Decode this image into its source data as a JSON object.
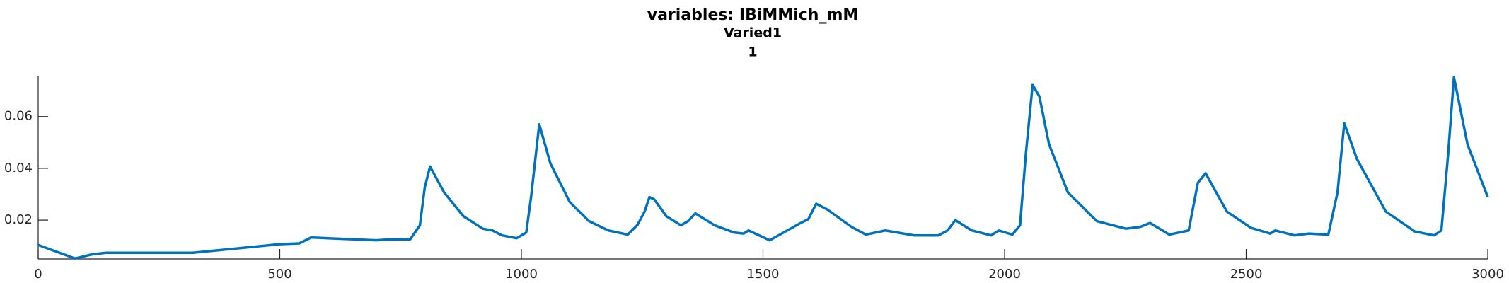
{
  "chart_data": {
    "type": "line",
    "title": "variables: IBiMMich_mM",
    "subtitle_lines": [
      "Varied1",
      "1"
    ],
    "x": [
      0,
      76,
      110,
      140,
      320,
      500,
      540,
      565,
      600,
      700,
      730,
      770,
      790,
      800,
      811,
      840,
      880,
      920,
      940,
      960,
      990,
      1010,
      1020,
      1030,
      1037,
      1060,
      1100,
      1140,
      1180,
      1220,
      1240,
      1255,
      1265,
      1275,
      1300,
      1330,
      1345,
      1360,
      1400,
      1440,
      1460,
      1470,
      1514,
      1574,
      1594,
      1610,
      1633,
      1683,
      1713,
      1753,
      1813,
      1863,
      1882,
      1898,
      1932,
      1972,
      1988,
      2016,
      2032,
      2044,
      2058,
      2072,
      2092,
      2131,
      2191,
      2251,
      2281,
      2301,
      2341,
      2381,
      2400,
      2416,
      2460,
      2510,
      2550,
      2560,
      2600,
      2630,
      2670,
      2689,
      2703,
      2729,
      2789,
      2849,
      2889,
      2904,
      2918,
      2930,
      2958,
      3000
    ],
    "series": [
      {
        "color": "#0072bd",
        "values": [
          0.0104,
          0.0052,
          0.0067,
          0.0074,
          0.0074,
          0.0107,
          0.011,
          0.0133,
          0.013,
          0.0122,
          0.0126,
          0.0126,
          0.018,
          0.0326,
          0.0407,
          0.0307,
          0.0215,
          0.0167,
          0.016,
          0.0141,
          0.013,
          0.0152,
          0.0289,
          0.0455,
          0.057,
          0.0419,
          0.027,
          0.0196,
          0.016,
          0.0144,
          0.0181,
          0.0233,
          0.0289,
          0.028,
          0.0215,
          0.018,
          0.0196,
          0.0226,
          0.018,
          0.0152,
          0.0148,
          0.016,
          0.0122,
          0.0185,
          0.0204,
          0.0263,
          0.0241,
          0.0174,
          0.0144,
          0.016,
          0.0141,
          0.0141,
          0.016,
          0.02,
          0.016,
          0.0141,
          0.016,
          0.0144,
          0.018,
          0.0455,
          0.0722,
          0.0678,
          0.0493,
          0.0307,
          0.0196,
          0.0167,
          0.0174,
          0.0189,
          0.0144,
          0.016,
          0.0344,
          0.0381,
          0.0233,
          0.017,
          0.0148,
          0.016,
          0.0141,
          0.0148,
          0.0144,
          0.0307,
          0.0574,
          0.0437,
          0.0233,
          0.0156,
          0.0141,
          0.016,
          0.0455,
          0.0752,
          0.0493,
          0.0289
        ]
      }
    ],
    "xlim": [
      0,
      3000
    ],
    "xticks": [
      0,
      500,
      1000,
      1500,
      2000,
      2500,
      3000
    ],
    "ylim": [
      0.005,
      0.0755
    ],
    "yticks": [
      0.02,
      0.04,
      0.06
    ],
    "grid": false
  }
}
